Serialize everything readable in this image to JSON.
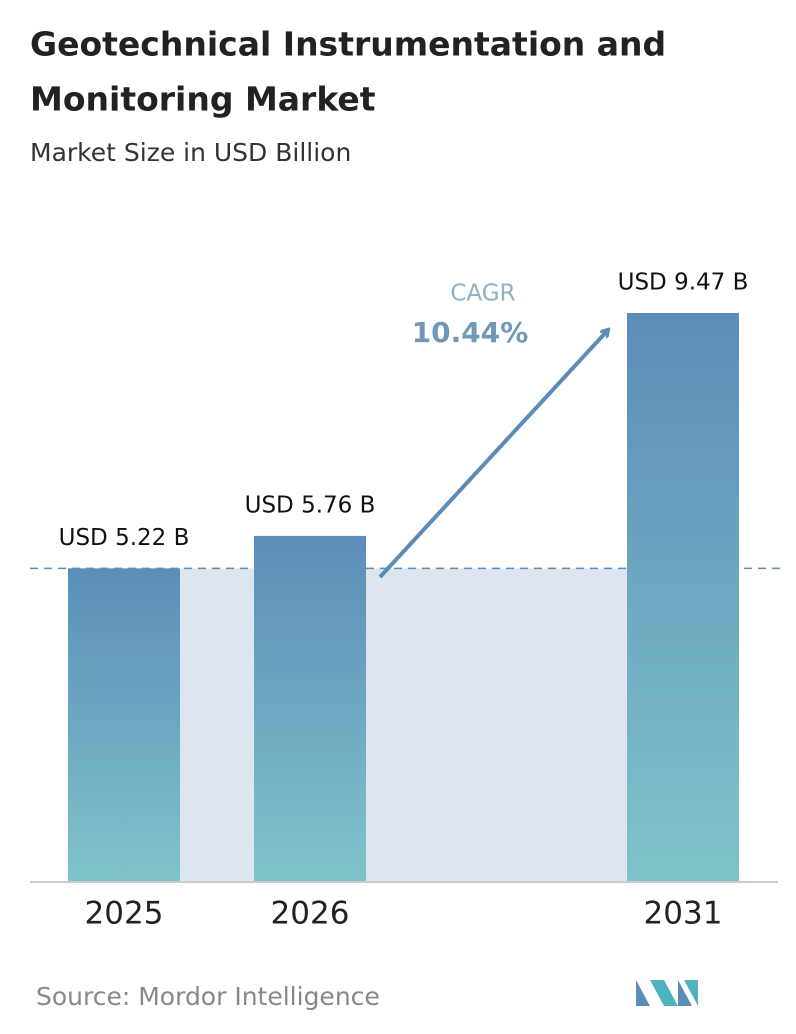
{
  "chart_data": {
    "type": "bar",
    "title": [
      "Geotechnical Instrumentation and",
      "Monitoring Market"
    ],
    "subtitle": "Market Size in USD Billion",
    "categories": [
      "2025",
      "2026",
      "2031"
    ],
    "values": [
      5.22,
      5.76,
      9.47
    ],
    "value_labels": [
      "USD 5.22 B",
      "USD 5.76 B",
      "USD 9.47 B"
    ],
    "annotation": {
      "label": "CAGR",
      "value": "10.44%"
    },
    "source": "Source: Mordor Intelligence"
  }
}
